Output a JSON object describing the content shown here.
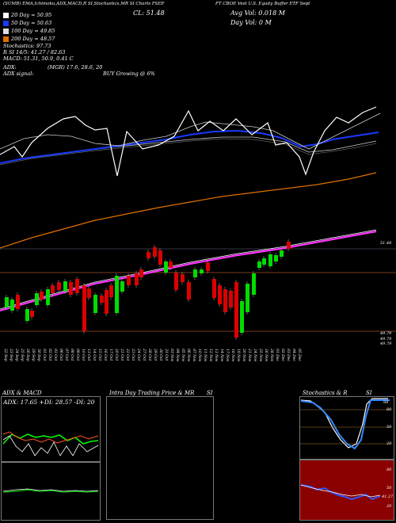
{
  "header": {
    "top_line": "(SUMB) EMA,Ichimoku,ADX,MACD,R SI,Stochastics,MR SI Charts FSEP",
    "subtitle": "FT CBOE Vest U.S. Equity Buffer ETF Sept",
    "close_label": "CL: 51.48",
    "avg_vol": "Avg Vol: 0.018  M",
    "day_vol": "Day Vol: 0   M"
  },
  "legend": [
    {
      "text": "20  Day = 50.95",
      "color": "#ffffff"
    },
    {
      "text": "50  Day = 50.63",
      "color": "#1a3aff"
    },
    {
      "text": "100  Day = 49.85",
      "color": "#dddddd"
    },
    {
      "text": "200  Day = 48.57",
      "color": "#e07000"
    }
  ],
  "indicators": {
    "stochastics_line": "Stochastics: 97.73",
    "rsi_line": "R SI 14/5: 41.27 / 82.63",
    "macd_line": "MACD: 51.31, 50.9, 0.41 C",
    "adx_line": "ADX:",
    "adx_value": "(MGR) 17.6, 28.6, 20",
    "adx_signal_label": "ADX  signal:",
    "signal_text": "BUY Growing @ 6%"
  },
  "price_labels": {
    "current": "51.48",
    "low_a": "49.79",
    "low_b": "49.79",
    "low_c": "49.79"
  },
  "chart_data": {
    "type": "candlestick",
    "x": [
      "22 Sep",
      "23 Sep",
      "24 Sep",
      "25 Sep",
      "26 Sep",
      "29 Sep",
      "30 Sep",
      "01 Oct",
      "02 Oct",
      "03 Oct",
      "06 Oct",
      "07 Oct",
      "08 Oct",
      "09 Oct",
      "10 Oct",
      "13 Oct",
      "14 Oct",
      "15 Oct",
      "16 Oct",
      "17 Oct",
      "20 Oct",
      "21 Oct",
      "22 Oct",
      "23 Oct",
      "24 Oct",
      "27 Oct",
      "28 Oct",
      "29 Oct",
      "30 Oct",
      "31 Oct",
      "03 Nov",
      "04 Nov",
      "05 Nov",
      "06 Nov",
      "07 Nov",
      "10 Nov",
      "11 Nov",
      "12 Nov",
      "13 Nov",
      "14 Nov",
      "17 Nov",
      "18 Nov",
      "19 Nov",
      "20 Nov",
      "21 Nov",
      "24 Nov",
      "25 Nov",
      "26 Nov",
      "28 Nov",
      "01 Dec",
      "02 Dec",
      "03 Dec",
      "04 Dec",
      "05 Dec"
    ],
    "price_range": [
      49.7,
      51.7
    ]
  },
  "panels": {
    "adx": {
      "title": "ADX  & MACD",
      "values": "ADX: 17.65  +DI: 28.57  -DI: 20"
    },
    "intraday": {
      "title": "Intra Day Trading Price  & MR",
      "suffix": "SI"
    },
    "stoch": {
      "title": "Stochastics & R",
      "suffix": "SI",
      "levels": [
        "80",
        "50",
        "20"
      ],
      "rsi_levels": [
        "80",
        "50",
        "20"
      ],
      "stoch_value": "98",
      "rsi_value": "41.27"
    }
  }
}
